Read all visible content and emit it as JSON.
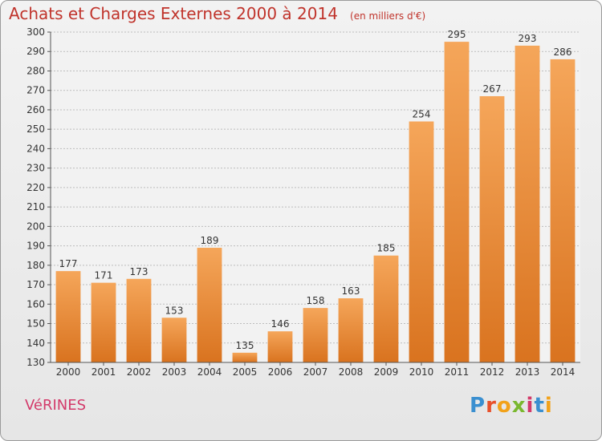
{
  "title": "Achats et Charges Externes 2000 à 2014",
  "unit": "(en milliers d'€)",
  "commune": "VéRINES",
  "logo": {
    "text": "Proxiti",
    "colors": [
      "#3a8fd0",
      "#e8502a",
      "#f2a21a",
      "#7ab82f",
      "#d33a6a",
      "#3a8fd0",
      "#f2a21a"
    ]
  },
  "colors": {
    "bar_top": "#f5a65a",
    "bar_bottom": "#d9731f",
    "title": "#c0332b",
    "commune": "#d33a6a"
  },
  "chart_data": {
    "type": "bar",
    "title": "Achats et Charges Externes 2000 à 2014",
    "categories": [
      "2000",
      "2001",
      "2002",
      "2003",
      "2004",
      "2005",
      "2006",
      "2007",
      "2008",
      "2009",
      "2010",
      "2011",
      "2012",
      "2013",
      "2014"
    ],
    "values": [
      177,
      171,
      173,
      153,
      189,
      135,
      146,
      158,
      163,
      185,
      254,
      295,
      267,
      293,
      286
    ],
    "ylim": [
      130,
      300
    ],
    "yticks": [
      130,
      140,
      150,
      160,
      170,
      180,
      190,
      200,
      210,
      220,
      230,
      240,
      250,
      260,
      270,
      280,
      290,
      300
    ],
    "grid": true,
    "legend": "none",
    "xlabel": "",
    "ylabel": ""
  }
}
